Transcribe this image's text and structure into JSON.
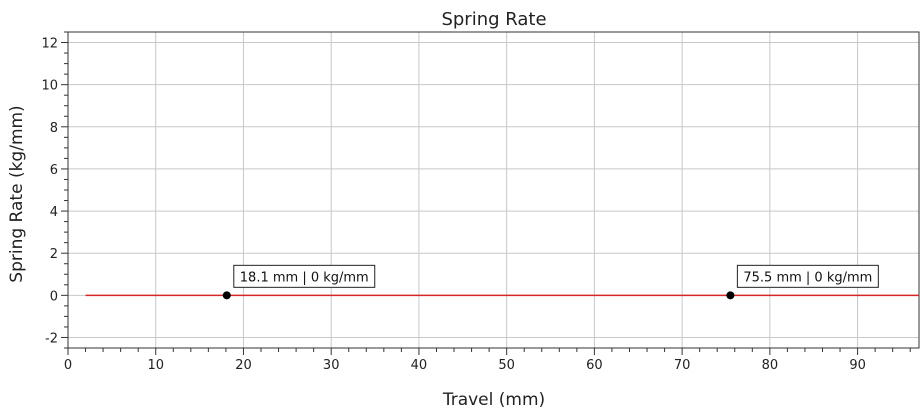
{
  "chart_data": {
    "type": "line",
    "title": "Spring Rate",
    "xlabel": "Travel (mm)",
    "ylabel": "Spring Rate (kg/mm)",
    "xlim": [
      0,
      97
    ],
    "ylim": [
      -2.5,
      12.5
    ],
    "x_ticks": [
      0,
      10,
      20,
      30,
      40,
      50,
      60,
      70,
      80,
      90
    ],
    "y_ticks": [
      -2,
      0,
      2,
      4,
      6,
      8,
      10,
      12
    ],
    "grid": true,
    "series": [
      {
        "color": "#d62728",
        "x": [
          2,
          10,
          20,
          30,
          40,
          50,
          60,
          70,
          80,
          90,
          97
        ],
        "y": [
          0,
          0,
          0,
          0,
          0,
          0,
          0,
          0,
          0,
          0,
          0
        ]
      }
    ],
    "markers": [
      {
        "x": 18.1,
        "y": 0,
        "label": "18.1 mm | 0 kg/mm"
      },
      {
        "x": 75.5,
        "y": 0,
        "label": "75.5 mm | 0 kg/mm"
      }
    ]
  }
}
